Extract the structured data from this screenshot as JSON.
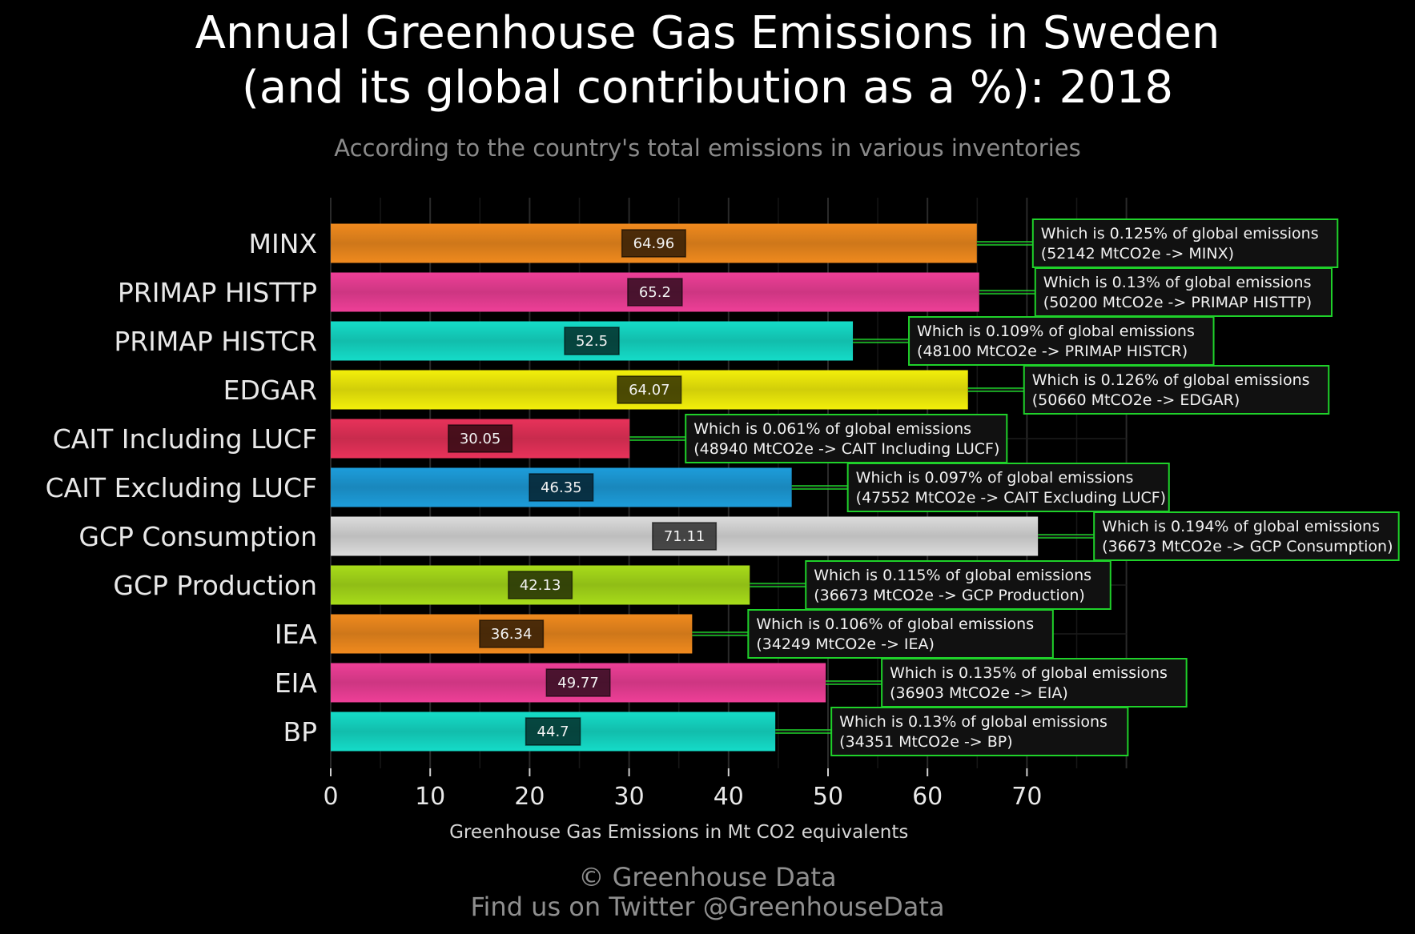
{
  "title_line1": "Annual Greenhouse Gas Emissions in Sweden",
  "title_line2": "(and its global contribution as a %): 2018",
  "subtitle": "According to the country's total emissions in various inventories",
  "footer_line1": "© Greenhouse Data",
  "footer_line2": "Find us on Twitter @GreenhouseData",
  "chart_data": {
    "type": "bar",
    "orientation": "horizontal",
    "title": "Annual Greenhouse Gas Emissions in Sweden (and its global contribution as a %): 2018",
    "subtitle": "According to the country's total emissions in various inventories",
    "xlabel": "Greenhouse Gas Emissions in Mt CO2 equivalents",
    "ylabel": "",
    "xlim": [
      0,
      80
    ],
    "xticks": [
      0,
      10,
      20,
      30,
      40,
      50,
      60,
      70
    ],
    "grid": true,
    "categories": [
      "MINX",
      "PRIMAP HISTTP",
      "PRIMAP HISTCR",
      "EDGAR",
      "CAIT Including LUCF",
      "CAIT Excluding LUCF",
      "GCP Consumption",
      "GCP Production",
      "IEA",
      "EIA",
      "BP"
    ],
    "values": [
      64.96,
      65.2,
      52.5,
      64.07,
      30.05,
      46.35,
      71.11,
      42.13,
      36.34,
      49.77,
      44.7
    ],
    "value_labels": [
      "64.96",
      "65.2",
      "52.5",
      "64.07",
      "30.05",
      "46.35",
      "71.11",
      "42.13",
      "36.34",
      "49.77",
      "44.7"
    ],
    "colors": [
      "#f08a1e",
      "#ee3f97",
      "#15dcc8",
      "#f3ef0a",
      "#e8325a",
      "#1d9ddb",
      "#dcdcdc",
      "#a8dc1a",
      "#f08a1e",
      "#ee3f97",
      "#15dcc8"
    ],
    "annotations": [
      {
        "line1": "Which is 0.125% of global emissions",
        "line2": "(52142 MtCO2e -> MINX)"
      },
      {
        "line1": "Which is 0.13% of global emissions",
        "line2": "(50200 MtCO2e -> PRIMAP HISTTP)"
      },
      {
        "line1": "Which is 0.109% of global emissions",
        "line2": "(48100 MtCO2e -> PRIMAP HISTCR)"
      },
      {
        "line1": "Which is 0.126% of global emissions",
        "line2": "(50660 MtCO2e -> EDGAR)"
      },
      {
        "line1": "Which is 0.061% of global emissions",
        "line2": "(48940 MtCO2e -> CAIT Including LUCF)"
      },
      {
        "line1": "Which is 0.097% of global emissions",
        "line2": "(47552 MtCO2e -> CAIT Excluding LUCF)"
      },
      {
        "line1": "Which is 0.194% of global emissions",
        "line2": "(36673 MtCO2e -> GCP Consumption)"
      },
      {
        "line1": "Which is 0.115% of global emissions",
        "line2": "(36673 MtCO2e -> GCP Production)"
      },
      {
        "line1": "Which is 0.106% of global emissions",
        "line2": "(34249 MtCO2e -> IEA)"
      },
      {
        "line1": "Which is 0.135% of global emissions",
        "line2": "(36903 MtCO2e -> EIA)"
      },
      {
        "line1": "Which is 0.13% of global emissions",
        "line2": "(34351 MtCO2e -> BP)"
      }
    ],
    "annotation_border_color": "#1fd12a",
    "gridline_color": "#2a2a2a"
  }
}
